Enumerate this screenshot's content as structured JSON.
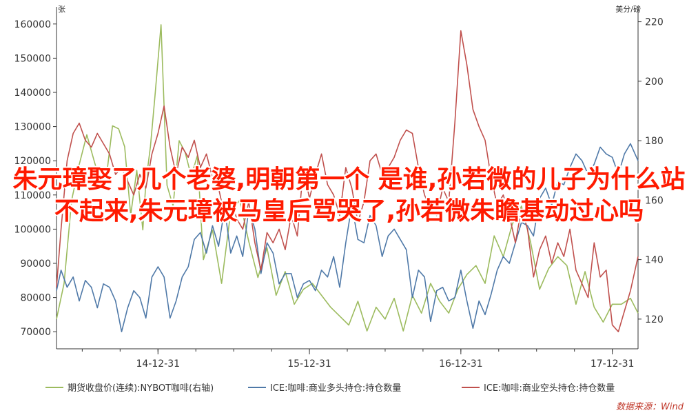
{
  "overlay_text": "朱元璋娶了几个老婆,明朝第一个 是谁,孙若微的儿子为什么站不起来,朱元璋被马皇后骂哭了,孙若微朱瞻基动过心吗",
  "source": "数据来源：Wind",
  "chart_data": {
    "type": "line",
    "left_axis": {
      "unit": "张",
      "ylim": [
        65000,
        165000
      ],
      "ticks": [
        "70000",
        "80000",
        "90000",
        "100000",
        "110000",
        "120000",
        "130000",
        "140000",
        "150000",
        "160000"
      ]
    },
    "right_axis": {
      "unit": "美分/磅",
      "ylim": [
        110,
        225
      ],
      "ticks": [
        "120",
        "140",
        "160",
        "180",
        "200",
        "220"
      ]
    },
    "x_ticks": [
      "14-12-31",
      "15-12-31",
      "16-12-31",
      "17-12-31"
    ],
    "x_tick_values": [
      2014.0,
      2015.0,
      2016.0,
      2017.0
    ],
    "xlim": [
      2013.33,
      2017.17
    ],
    "colors": {
      "futures": "#9cbb5e",
      "long": "#4f79a8",
      "short": "#c0504d"
    },
    "series": [
      {
        "name": "期货收盘价(连续):NYBOT咖啡(右轴)",
        "axis": "right",
        "color": "#9cbb5e",
        "x": [
          2013.33,
          2013.38,
          2013.43,
          2013.48,
          2013.53,
          2013.58,
          2013.62,
          2013.66,
          2013.7,
          2013.74,
          2013.78,
          2013.82,
          2013.86,
          2013.9,
          2013.92,
          2013.95,
          2013.98,
          2014.02,
          2014.06,
          2014.1,
          2014.14,
          2014.18,
          2014.22,
          2014.26,
          2014.3,
          2014.36,
          2014.42,
          2014.48,
          2014.54,
          2014.6,
          2014.66,
          2014.72,
          2014.78,
          2014.84,
          2014.9,
          2014.96,
          2015.02,
          2015.08,
          2015.14,
          2015.2,
          2015.26,
          2015.32,
          2015.38,
          2015.44,
          2015.5,
          2015.56,
          2015.62,
          2015.68,
          2015.74,
          2015.8,
          2015.86,
          2015.92,
          2015.98,
          2016.04,
          2016.1,
          2016.16,
          2016.22,
          2016.28,
          2016.34,
          2016.4,
          2016.46,
          2016.52,
          2016.58,
          2016.64,
          2016.7,
          2016.76,
          2016.82,
          2016.88,
          2016.94,
          2017.0,
          2017.06,
          2017.12,
          2017.17
        ],
        "values": [
          120,
          132,
          160,
          172,
          182,
          173,
          166,
          168,
          185,
          184,
          178,
          155,
          170,
          150,
          166,
          178,
          195,
          219,
          165,
          158,
          180,
          176,
          168,
          175,
          140,
          150,
          132,
          156,
          160,
          146,
          134,
          144,
          128,
          136,
          125,
          130,
          132,
          128,
          124,
          121,
          118,
          126,
          116,
          124,
          120,
          127,
          116,
          128,
          122,
          132,
          126,
          122,
          130,
          135,
          138,
          132,
          148,
          141,
          152,
          158,
          146,
          130,
          137,
          141,
          138,
          125,
          136,
          124,
          119,
          125,
          125,
          127,
          122
        ]
      },
      {
        "name": "ICE:咖啡:商业多头持仓:持仓数量",
        "axis": "left",
        "color": "#4f79a8",
        "x": [
          2013.33,
          2013.36,
          2013.4,
          2013.44,
          2013.48,
          2013.52,
          2013.56,
          2013.6,
          2013.64,
          2013.68,
          2013.72,
          2013.76,
          2013.8,
          2013.84,
          2013.88,
          2013.92,
          2013.96,
          2014.0,
          2014.04,
          2014.08,
          2014.12,
          2014.16,
          2014.2,
          2014.24,
          2014.28,
          2014.32,
          2014.36,
          2014.4,
          2014.44,
          2014.48,
          2014.52,
          2014.56,
          2014.6,
          2014.64,
          2014.68,
          2014.72,
          2014.76,
          2014.8,
          2014.84,
          2014.88,
          2014.92,
          2014.96,
          2015.0,
          2015.04,
          2015.08,
          2015.12,
          2015.16,
          2015.2,
          2015.24,
          2015.28,
          2015.32,
          2015.36,
          2015.4,
          2015.44,
          2015.48,
          2015.52,
          2015.56,
          2015.6,
          2015.64,
          2015.68,
          2015.72,
          2015.76,
          2015.8,
          2015.84,
          2015.88,
          2015.92,
          2015.96,
          2016.0,
          2016.04,
          2016.08,
          2016.12,
          2016.16,
          2016.2,
          2016.24,
          2016.28,
          2016.32,
          2016.36,
          2016.4,
          2016.44,
          2016.48,
          2016.52,
          2016.56,
          2016.6,
          2016.64,
          2016.68,
          2016.72,
          2016.76,
          2016.8,
          2016.84,
          2016.88,
          2016.92,
          2016.96,
          2017.0,
          2017.04,
          2017.08,
          2017.12,
          2017.17
        ],
        "values": [
          82000,
          88000,
          83000,
          86000,
          79000,
          85000,
          83000,
          77000,
          84000,
          83000,
          79000,
          70000,
          77000,
          82000,
          80000,
          74000,
          86000,
          89000,
          86000,
          74000,
          79000,
          86000,
          89000,
          97000,
          99000,
          93000,
          101000,
          95000,
          106000,
          93000,
          98000,
          92000,
          106000,
          100000,
          87000,
          96000,
          93000,
          84000,
          87000,
          87000,
          80000,
          84000,
          85000,
          82000,
          88000,
          86000,
          92000,
          83000,
          96000,
          107000,
          97000,
          96000,
          104000,
          101000,
          92000,
          98000,
          100000,
          97000,
          94000,
          80000,
          88000,
          86000,
          73000,
          82000,
          83000,
          79000,
          80000,
          88000,
          79000,
          71000,
          79000,
          75000,
          81000,
          88000,
          92000,
          90000,
          96000,
          102000,
          101000,
          98000,
          109000,
          112000,
          107000,
          114000,
          113000,
          118000,
          122000,
          120000,
          116000,
          119000,
          124000,
          122000,
          121000,
          116000,
          122000,
          125000,
          120000
        ]
      },
      {
        "name": "ICE:咖啡:商业空头持仓:持仓数量",
        "axis": "left",
        "color": "#c0504d",
        "x": [
          2013.33,
          2013.36,
          2013.4,
          2013.44,
          2013.48,
          2013.52,
          2013.56,
          2013.6,
          2013.64,
          2013.68,
          2013.72,
          2013.76,
          2013.8,
          2013.84,
          2013.88,
          2013.92,
          2013.96,
          2014.0,
          2014.04,
          2014.08,
          2014.12,
          2014.16,
          2014.2,
          2014.24,
          2014.28,
          2014.32,
          2014.36,
          2014.4,
          2014.44,
          2014.48,
          2014.52,
          2014.56,
          2014.6,
          2014.64,
          2014.68,
          2014.72,
          2014.76,
          2014.8,
          2014.84,
          2014.88,
          2014.92,
          2014.96,
          2015.0,
          2015.04,
          2015.08,
          2015.12,
          2015.16,
          2015.2,
          2015.24,
          2015.28,
          2015.32,
          2015.36,
          2015.4,
          2015.44,
          2015.48,
          2015.52,
          2015.56,
          2015.6,
          2015.64,
          2015.68,
          2015.72,
          2015.76,
          2015.8,
          2015.84,
          2015.88,
          2015.92,
          2015.96,
          2016.0,
          2016.04,
          2016.08,
          2016.12,
          2016.16,
          2016.2,
          2016.24,
          2016.28,
          2016.32,
          2016.36,
          2016.4,
          2016.44,
          2016.48,
          2016.52,
          2016.56,
          2016.6,
          2016.64,
          2016.68,
          2016.72,
          2016.76,
          2016.8,
          2016.84,
          2016.88,
          2016.92,
          2016.96,
          2017.0,
          2017.04,
          2017.08,
          2017.12,
          2017.17
        ],
        "values": [
          83000,
          100000,
          120000,
          128000,
          131000,
          126000,
          124000,
          128000,
          125000,
          122000,
          116000,
          118000,
          114000,
          110000,
          116000,
          112000,
          122000,
          128000,
          136000,
          124000,
          116000,
          124000,
          121000,
          126000,
          118000,
          122000,
          115000,
          112000,
          104000,
          109000,
          103000,
          100000,
          108000,
          96000,
          88000,
          99000,
          96000,
          100000,
          94000,
          104000,
          98000,
          118000,
          109000,
          116000,
          122000,
          113000,
          110000,
          104000,
          118000,
          112000,
          102000,
          108000,
          120000,
          122000,
          116000,
          118000,
          121000,
          126000,
          129000,
          128000,
          118000,
          110000,
          106000,
          104000,
          112000,
          108000,
          131000,
          158000,
          148000,
          135000,
          130000,
          126000,
          115000,
          107000,
          110000,
          104000,
          96000,
          106000,
          100000,
          86000,
          94000,
          98000,
          90000,
          96000,
          92000,
          100000,
          88000,
          84000,
          80000,
          96000,
          86000,
          88000,
          72000,
          70000,
          76000,
          82000,
          92000
        ]
      }
    ]
  }
}
